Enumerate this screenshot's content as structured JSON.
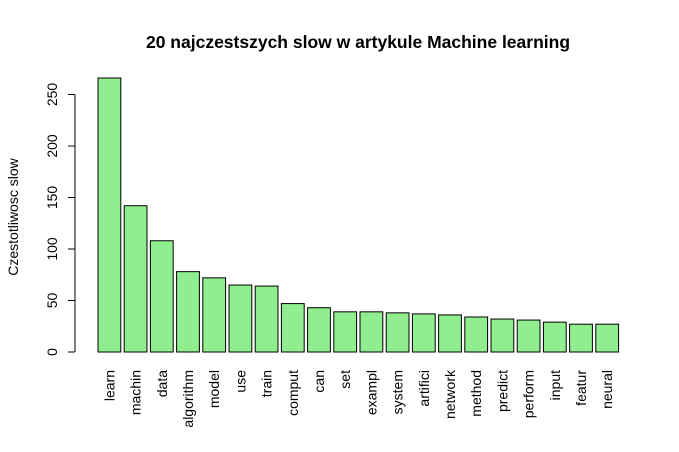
{
  "colors": {
    "bar_fill": "#90ee90",
    "bar_stroke": "#000000",
    "background": "#ffffff"
  },
  "chart_data": {
    "type": "bar",
    "title": "20 najczestszych slow w artykule Machine learning",
    "xlabel": "",
    "ylabel": "Czestotliwosc slow",
    "categories": [
      "learn",
      "machin",
      "data",
      "algorithm",
      "model",
      "use",
      "train",
      "comput",
      "can",
      "set",
      "exampl",
      "system",
      "artifici",
      "network",
      "method",
      "predict",
      "perform",
      "input",
      "featur",
      "neural"
    ],
    "values": [
      266,
      142,
      108,
      78,
      72,
      65,
      64,
      47,
      43,
      39,
      39,
      38,
      37,
      36,
      34,
      32,
      31,
      29,
      27,
      27
    ],
    "yticks": [
      0,
      50,
      100,
      150,
      200,
      250
    ],
    "ylim": [
      0,
      266
    ],
    "x_tick_orientation": "vertical",
    "grid": false,
    "legend": "none"
  }
}
